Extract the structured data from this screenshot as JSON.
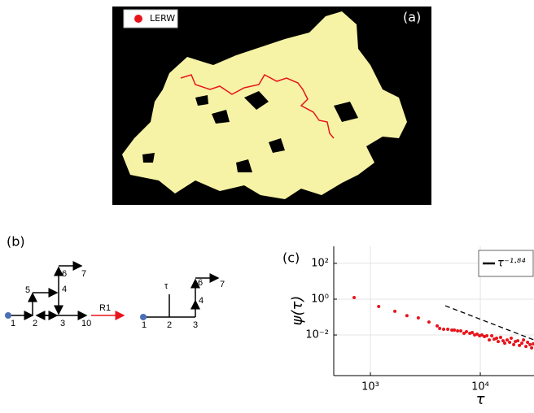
{
  "panel_a": {
    "panel_label": "(a)",
    "legend": "LERW"
  },
  "panel_b": {
    "panel_label": "(b)",
    "left_nodes": [
      "1",
      "2",
      "3",
      "10",
      "5",
      "4",
      "6",
      "7"
    ],
    "transform_label": "R1",
    "right_nodes": [
      "1",
      "2",
      "3",
      "4",
      "6",
      "7",
      "τ"
    ]
  },
  "chart_data": {
    "type": "scatter",
    "panel_label": "(c)",
    "xlabel": "τ",
    "ylabel": "ψ(τ)",
    "log_x": true,
    "log_y": true,
    "grid": true,
    "legend": "upper right",
    "xlim": [
      464,
      30800
    ],
    "ylim": [
      5.4e-05,
      890
    ],
    "xticks": [
      {
        "value": 1000,
        "label": "10³"
      },
      {
        "value": 10000,
        "label": "10⁴"
      }
    ],
    "yticks": [
      {
        "value": 0.01,
        "label": "10⁻²"
      },
      {
        "value": 1,
        "label": "10⁰"
      },
      {
        "value": 100,
        "label": "10²"
      }
    ],
    "series": [
      {
        "color": "#e8141b",
        "x": [
          711,
          1190,
          1670,
          2150,
          2730,
          3410,
          4050,
          4270,
          4640,
          5060,
          5510,
          5800,
          6210,
          6640,
          7110,
          7480,
          8020,
          8440,
          8880,
          9340,
          9840,
          10350,
          10900,
          11460,
          12060,
          12700,
          13370,
          14060,
          14550,
          15310,
          16110,
          16680,
          17540,
          18490,
          19100,
          20130,
          20830,
          21930,
          22700,
          23880,
          24720,
          26000,
          26920,
          28310,
          29310,
          30270
        ],
        "values": [
          1.23,
          0.39,
          0.21,
          0.12,
          0.09,
          0.053,
          0.032,
          0.0231,
          0.0208,
          0.0208,
          0.0187,
          0.0187,
          0.0169,
          0.0169,
          0.0123,
          0.0152,
          0.0123,
          0.0137,
          0.01,
          0.0111,
          0.009,
          0.01,
          0.0081,
          0.009,
          0.0053,
          0.009,
          0.0059,
          0.0066,
          0.0043,
          0.0073,
          0.0048,
          0.0035,
          0.0053,
          0.0039,
          0.0066,
          0.0029,
          0.0043,
          0.0048,
          0.0026,
          0.0035,
          0.0053,
          0.0023,
          0.0039,
          0.0029,
          0.0019,
          0.0032
        ]
      },
      {
        "name": "τ⁻¹·⁸⁴",
        "color": "#000000",
        "line_style": "dashed",
        "x": [
          4800,
          30800
        ],
        "values": [
          0.43,
          0.0053
        ]
      }
    ]
  }
}
